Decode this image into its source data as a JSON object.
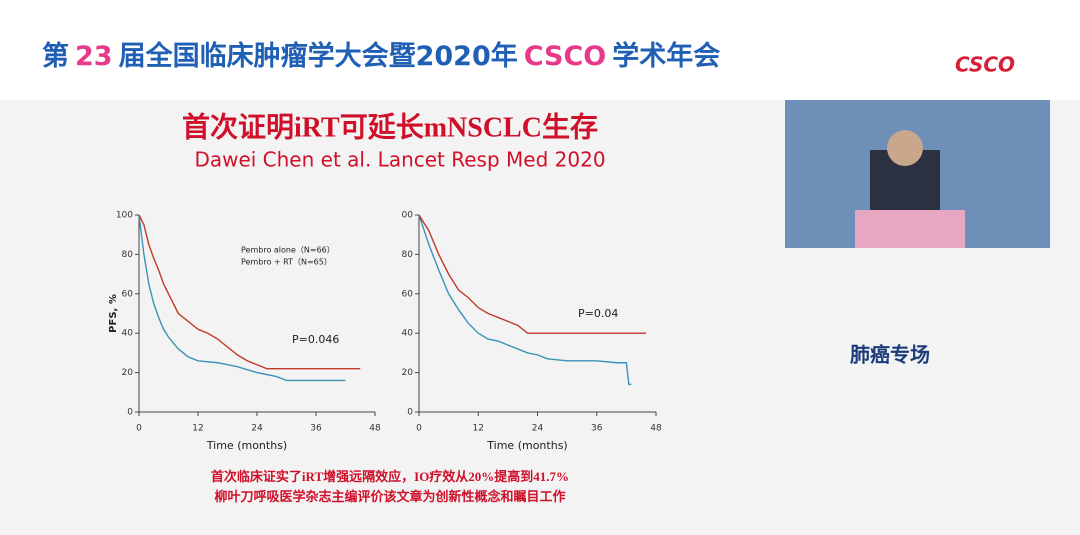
{
  "header": {
    "title_parts": [
      {
        "text": "第",
        "color": "#1f5fb4"
      },
      {
        "text": "23",
        "color": "#e8398a"
      },
      {
        "text": "届全国临床肿瘤学大会暨2020年",
        "color": "#1f5fb4"
      },
      {
        "text": "CSCO",
        "color": "#e8398a"
      },
      {
        "text": "学术年会",
        "color": "#1f5fb4"
      }
    ],
    "logo": "CSCO"
  },
  "slide": {
    "title": "首次证明iRT可延长mNSCLC生存",
    "subtitle": "Dawei Chen et al. Lancet Resp Med 2020",
    "footnotes": [
      "首次临床证实了iRT增强远隔效应，IO疗效从20%提高到41.7%",
      "柳叶刀呼吸医学杂志主编评价该文章为创新性概念和瞩目工作"
    ]
  },
  "sidebar": {
    "session": "肺癌专场"
  },
  "chart_data": [
    {
      "type": "line",
      "x_label": "Time (months)",
      "y_label": "PFS, %",
      "annotation": "P=0.046",
      "xlim": [
        0,
        48
      ],
      "xticks": [
        0,
        12,
        24,
        36,
        48
      ],
      "ylim": [
        0,
        100
      ],
      "yticks": [
        0,
        20,
        40,
        60,
        80,
        100
      ],
      "legend": "top-right",
      "series": [
        {
          "name": "Pembro alone（N=66）",
          "color": "#3a93b8",
          "x": [
            0,
            1,
            2,
            3,
            4,
            5,
            6,
            8,
            10,
            12,
            16,
            20,
            24,
            28,
            30,
            36,
            42
          ],
          "values": [
            100,
            80,
            65,
            55,
            48,
            42,
            38,
            32,
            28,
            26,
            25,
            23,
            20,
            18,
            16,
            16,
            16
          ]
        },
        {
          "name": "Pembro + RT（N=65）",
          "color": "#c0392b",
          "x": [
            0,
            1,
            2,
            3,
            4,
            5,
            6,
            7,
            8,
            10,
            12,
            14,
            16,
            18,
            20,
            22,
            24,
            26,
            30,
            36,
            42,
            45
          ],
          "values": [
            100,
            95,
            85,
            78,
            72,
            65,
            60,
            55,
            50,
            46,
            42,
            40,
            37,
            33,
            29,
            26,
            24,
            22,
            22,
            22,
            22,
            22
          ]
        }
      ]
    },
    {
      "type": "line",
      "x_label": "Time (months)",
      "annotation": "P=0.04",
      "xlim": [
        0,
        48
      ],
      "xticks": [
        0,
        12,
        24,
        36,
        48
      ],
      "ylim": [
        0,
        100
      ],
      "yticks": [
        0,
        20,
        40,
        60,
        80,
        {
          "value": 100,
          "label": "00"
        }
      ],
      "series": [
        {
          "color": "#3a93b8",
          "x": [
            0,
            2,
            4,
            6,
            8,
            10,
            12,
            14,
            16,
            18,
            20,
            22,
            24,
            26,
            30,
            36,
            40,
            42,
            42.5,
            43
          ],
          "values": [
            100,
            85,
            72,
            60,
            52,
            45,
            40,
            37,
            36,
            34,
            32,
            30,
            29,
            27,
            26,
            26,
            25,
            25,
            14,
            14
          ]
        },
        {
          "color": "#c0392b",
          "x": [
            0,
            2,
            4,
            6,
            8,
            10,
            12,
            14,
            16,
            18,
            20,
            22,
            24,
            30,
            36,
            42,
            46
          ],
          "values": [
            100,
            92,
            80,
            70,
            62,
            58,
            53,
            50,
            48,
            46,
            44,
            40,
            40,
            40,
            40,
            40,
            40
          ]
        }
      ]
    }
  ]
}
